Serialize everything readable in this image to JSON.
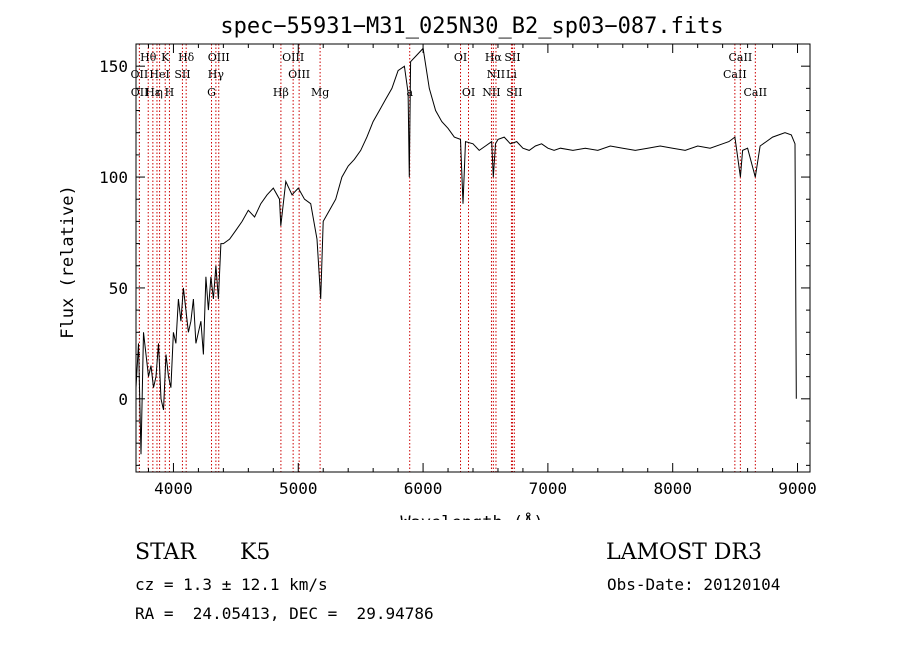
{
  "chart_data": {
    "type": "line",
    "title": "spec−55931−M31_025N30_B2_sp03−087.fits",
    "xlabel": "Wavelength (Å)",
    "ylabel": "Flux (relative)",
    "xlim": [
      3700,
      9100
    ],
    "ylim": [
      -33,
      160
    ],
    "xticks": [
      4000,
      5000,
      6000,
      7000,
      8000,
      9000
    ],
    "yticks": [
      0,
      50,
      100,
      150
    ],
    "grid": false,
    "series": [
      {
        "x": [
          3700,
          3720,
          3740,
          3760,
          3780,
          3800,
          3820,
          3840,
          3860,
          3880,
          3900,
          3920,
          3940,
          3960,
          3980,
          4000,
          4020,
          4040,
          4060,
          4080,
          4100,
          4120,
          4140,
          4160,
          4180,
          4200,
          4220,
          4240,
          4260,
          4280,
          4300,
          4320,
          4340,
          4360,
          4380,
          4400,
          4450,
          4500,
          4550,
          4600,
          4650,
          4700,
          4750,
          4800,
          4850,
          4860,
          4900,
          4950,
          5000,
          5050,
          5100,
          5150,
          5180,
          5200,
          5250,
          5300,
          5350,
          5400,
          5450,
          5500,
          5550,
          5600,
          5650,
          5700,
          5750,
          5800,
          5850,
          5880,
          5890,
          5900,
          5950,
          6000,
          6050,
          6100,
          6150,
          6200,
          6250,
          6300,
          6320,
          6340,
          6400,
          6450,
          6500,
          6550,
          6563,
          6580,
          6600,
          6650,
          6700,
          6750,
          6800,
          6850,
          6900,
          6950,
          7000,
          7050,
          7100,
          7200,
          7300,
          7400,
          7500,
          7600,
          7700,
          7800,
          7900,
          8000,
          8100,
          8200,
          8300,
          8400,
          8450,
          8498,
          8542,
          8560,
          8600,
          8662,
          8700,
          8750,
          8800,
          8850,
          8900,
          8950,
          8980,
          8990
        ],
        "y": [
          5,
          25,
          -25,
          30,
          20,
          10,
          15,
          5,
          10,
          25,
          0,
          -5,
          20,
          10,
          5,
          30,
          25,
          45,
          35,
          50,
          40,
          30,
          35,
          45,
          25,
          30,
          35,
          20,
          55,
          40,
          55,
          45,
          60,
          45,
          70,
          70,
          72,
          76,
          80,
          85,
          82,
          88,
          92,
          95,
          90,
          78,
          98,
          92,
          95,
          90,
          88,
          72,
          45,
          80,
          85,
          90,
          100,
          105,
          108,
          112,
          118,
          125,
          130,
          135,
          140,
          148,
          150,
          138,
          100,
          152,
          155,
          158,
          140,
          130,
          125,
          122,
          118,
          117,
          88,
          116,
          115,
          112,
          114,
          116,
          100,
          115,
          117,
          118,
          115,
          116,
          113,
          112,
          114,
          115,
          113,
          112,
          113,
          112,
          113,
          112,
          114,
          113,
          112,
          113,
          114,
          113,
          112,
          114,
          113,
          115,
          116,
          118,
          100,
          112,
          113,
          100,
          114,
          116,
          118,
          119,
          120,
          119,
          115,
          0
        ]
      }
    ],
    "line_labels": [
      {
        "text": "Hθ",
        "row": 0,
        "x": 3798
      },
      {
        "text": "K",
        "row": 0,
        "x": 3934
      },
      {
        "text": "Hδ",
        "row": 0,
        "x": 4102
      },
      {
        "text": "OIII",
        "row": 0,
        "x": 4363
      },
      {
        "text": "OIII",
        "row": 0,
        "x": 4959
      },
      {
        "text": "OI",
        "row": 0,
        "x": 6300
      },
      {
        "text": "Hα",
        "row": 0,
        "x": 6563
      },
      {
        "text": "SII",
        "row": 0,
        "x": 6716
      },
      {
        "text": "CaII",
        "row": 0,
        "x": 8542
      },
      {
        "text": "OII",
        "row": 1,
        "x": 3727
      },
      {
        "text": "HeI",
        "row": 1,
        "x": 3889
      },
      {
        "text": "SII",
        "row": 1,
        "x": 4072
      },
      {
        "text": "Hγ",
        "row": 1,
        "x": 4340
      },
      {
        "text": "OIII",
        "row": 1,
        "x": 5007
      },
      {
        "text": "NII",
        "row": 1,
        "x": 6584
      },
      {
        "text": "Li",
        "row": 1,
        "x": 6708
      },
      {
        "text": "CaII",
        "row": 1,
        "x": 8498
      },
      {
        "text": "OII",
        "row": 2,
        "x": 3729
      },
      {
        "text": "Hε",
        "row": 2,
        "x": 3835
      },
      {
        "text": "η",
        "row": 2,
        "x": 3889
      },
      {
        "text": "H",
        "row": 2,
        "x": 3968
      },
      {
        "text": "G",
        "row": 2,
        "x": 4305
      },
      {
        "text": "Hβ",
        "row": 2,
        "x": 4861
      },
      {
        "text": "Mg",
        "row": 2,
        "x": 5175
      },
      {
        "text": "a",
        "row": 2,
        "x": 5893
      },
      {
        "text": "OI",
        "row": 2,
        "x": 6364
      },
      {
        "text": "NII",
        "row": 2,
        "x": 6548
      },
      {
        "text": "SII",
        "row": 2,
        "x": 6731
      },
      {
        "text": "CaII",
        "row": 2,
        "x": 8662
      }
    ],
    "line_markers": [
      3727,
      3798,
      3835,
      3868,
      3889,
      3934,
      3968,
      4072,
      4102,
      4305,
      4340,
      4363,
      4861,
      4959,
      5007,
      5175,
      5893,
      6300,
      6364,
      6548,
      6563,
      6584,
      6708,
      6716,
      6731,
      8498,
      8542,
      8662
    ]
  },
  "info": {
    "object_class": "STAR",
    "subclass": "K5",
    "survey": "LAMOST DR3",
    "cz": "cz = 1.3 ± 12.1 km/s",
    "obs_date": "Obs-Date: 20120104",
    "coords": "RA =  24.05413, DEC =  29.94786"
  },
  "colors": {
    "axis": "#000000",
    "spectrum": "#000000",
    "marker": "#cc0000"
  }
}
